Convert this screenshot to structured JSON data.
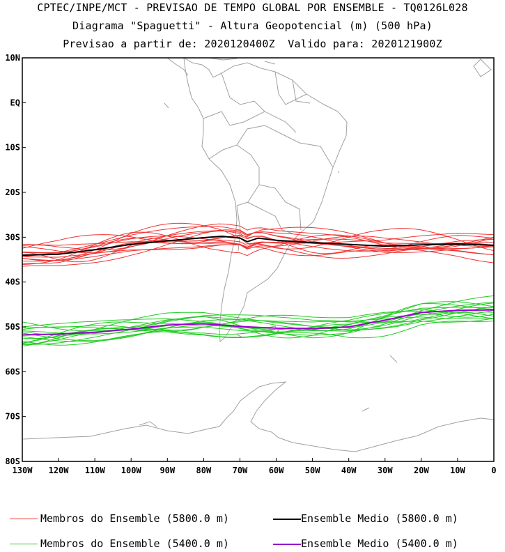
{
  "header": {
    "line1": "CPTEC/INPE/MCT - PREVISAO DE TEMPO GLOBAL POR ENSEMBLE - TQ0126L028",
    "line2": "Diagrama \"Spaguetti\" - Altura Geopotencial (m) (500 hPa)",
    "line3": "Previsao a partir de: 2020120400Z  Valido para: 2020121900Z"
  },
  "axes": {
    "lat_labels": [
      "10N",
      "EQ",
      "10S",
      "20S",
      "30S",
      "40S",
      "50S",
      "60S",
      "70S",
      "80S"
    ],
    "lat_values": [
      10,
      0,
      -10,
      -20,
      -30,
      -40,
      -50,
      -60,
      -70,
      -80
    ],
    "lon_labels": [
      "130W",
      "120W",
      "110W",
      "100W",
      "90W",
      "80W",
      "70W",
      "60W",
      "50W",
      "40W",
      "30W",
      "20W",
      "10W",
      "0"
    ],
    "lon_values": [
      -130,
      -120,
      -110,
      -100,
      -90,
      -80,
      -70,
      -60,
      -50,
      -40,
      -30,
      -20,
      -10,
      0
    ]
  },
  "colors": {
    "member_5800": "#ee3333",
    "mean_5800": "#000000",
    "member_5400": "#22cc22",
    "mean_5400": "#9900cc",
    "coast": "#a0a0a0"
  },
  "chart_data": {
    "type": "line",
    "extent": {
      "lon": [
        -130,
        0
      ],
      "lat": [
        -80,
        10
      ]
    },
    "series": [
      {
        "name": "Ensemble Medio (5800.0 m)",
        "lon": [
          -130,
          -120,
          -110,
          -100,
          -90,
          -80,
          -75,
          -70,
          -68,
          -65,
          -60,
          -50,
          -40,
          -30,
          -20,
          -10,
          0
        ],
        "lat": [
          -34.0,
          -33.8,
          -32.8,
          -31.6,
          -30.8,
          -30.1,
          -29.8,
          -30.2,
          -31.0,
          -30.2,
          -30.7,
          -31.2,
          -31.6,
          -32.0,
          -31.7,
          -31.5,
          -31.8
        ]
      },
      {
        "name": "Ensemble Medio (5400.0 m)",
        "lon": [
          -130,
          -120,
          -110,
          -100,
          -90,
          -80,
          -70,
          -60,
          -50,
          -40,
          -30,
          -20,
          -10,
          0
        ],
        "lat": [
          -51.8,
          -51.6,
          -51.2,
          -50.5,
          -49.6,
          -49.3,
          -49.9,
          -50.3,
          -50.4,
          -50.0,
          -48.5,
          -46.8,
          -46.3,
          -46.2
        ]
      }
    ],
    "members_5800_count": 15,
    "members_5400_count": 15
  },
  "legend": {
    "items": [
      {
        "label": "Membros do Ensemble (5800.0 m)"
      },
      {
        "label": "Ensemble Medio (5800.0 m)"
      },
      {
        "label": "Membros do Ensemble (5400.0 m)"
      },
      {
        "label": "Ensemble Medio (5400.0 m)"
      }
    ]
  }
}
